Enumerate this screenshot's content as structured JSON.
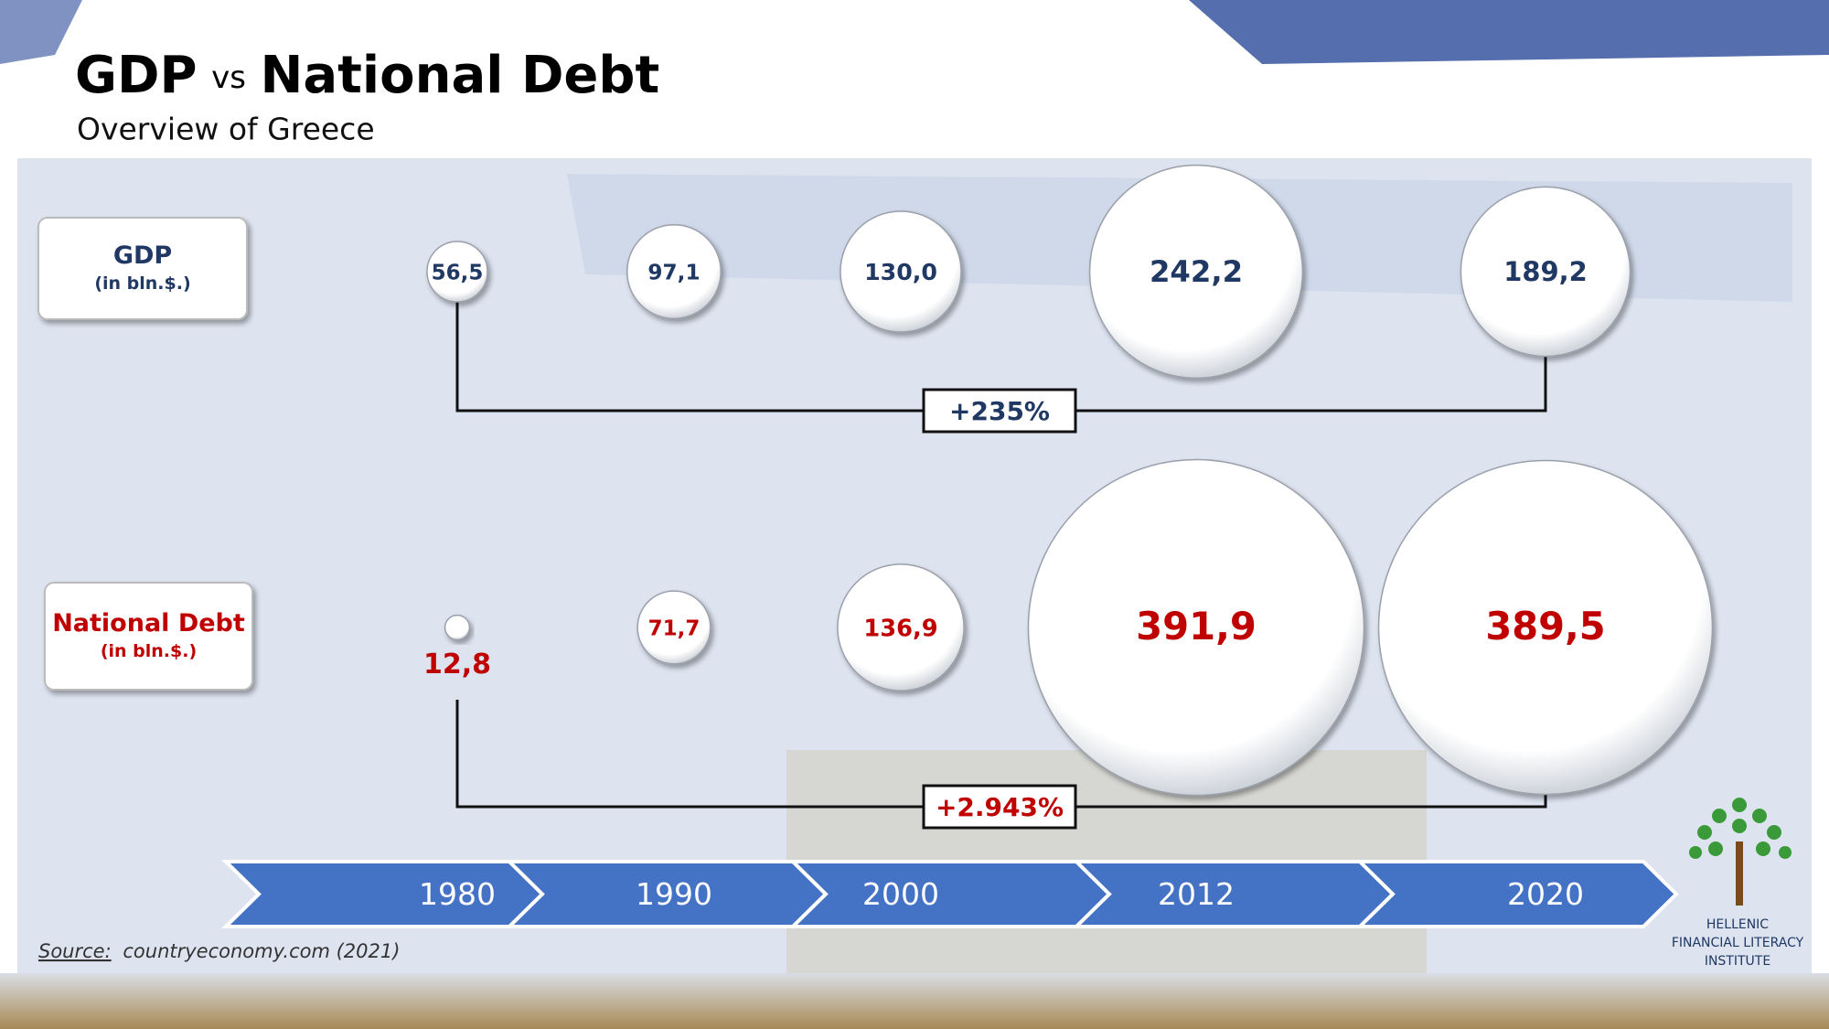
{
  "chart_data": {
    "type": "bubble",
    "title": [
      "GDP",
      "vs",
      "National Debt"
    ],
    "subtitle": "Overview of Greece",
    "categories": [
      "1980",
      "1990",
      "2000",
      "2012",
      "2020"
    ],
    "series": [
      {
        "name": "GDP",
        "unit": "(in bln.$.)",
        "color": "#1f3864",
        "values": [
          56.5,
          97.1,
          130.0,
          242.2,
          189.2
        ],
        "value_labels": [
          "56,5",
          "97,1",
          "130,0",
          "242,2",
          "189,2"
        ],
        "change_label": "+235%"
      },
      {
        "name": "National Debt",
        "unit": "(in bln.$.)",
        "color": "#c00000",
        "values": [
          12.8,
          71.7,
          136.9,
          391.9,
          389.5
        ],
        "value_labels": [
          "12,8",
          "71,7",
          "136,9",
          "391,9",
          "389,5"
        ],
        "change_label": "+2.943%"
      }
    ],
    "timeline_color": "#4472c4",
    "source": {
      "prefix": "Source:",
      "text": "countryeconomy.com (2021)"
    },
    "logo": [
      "HELLENIC",
      "FINANCIAL LITERACY",
      "INSTITUTE"
    ]
  }
}
